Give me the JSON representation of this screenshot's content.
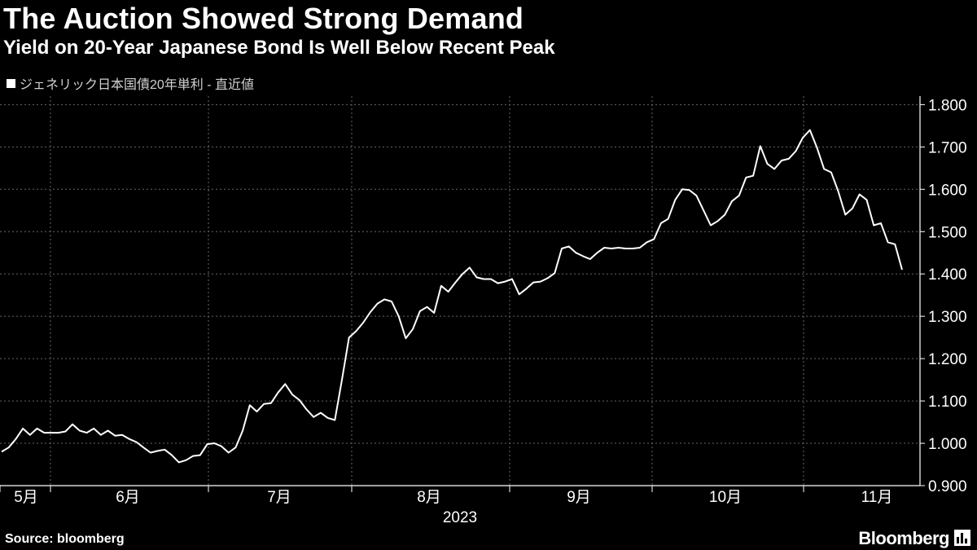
{
  "header": {
    "title": "The Auction Showed Strong Demand",
    "subtitle": "Yield on 20-Year Japanese Bond Is Well Below Recent Peak"
  },
  "legend": {
    "label": "ジェネリック日本国債20年単利 - 直近値"
  },
  "footer": {
    "source": "Source: bloomberg",
    "brand": "Bloomberg"
  },
  "colors": {
    "background": "#000000",
    "line": "#ffffff",
    "grid": "#666666"
  },
  "chart_data": {
    "type": "line",
    "title": "The Auction Showed Strong Demand",
    "subtitle": "Yield on 20-Year Japanese Bond Is Well Below Recent Peak",
    "series_name": "ジェネリック日本国債20年単利 - 直近値",
    "ylim": [
      0.9,
      1.82
    ],
    "y_ticks": [
      0.9,
      1.0,
      1.1,
      1.2,
      1.3,
      1.4,
      1.5,
      1.6,
      1.7,
      1.8
    ],
    "y_tick_labels": [
      "0.900",
      "1.000",
      "1.100",
      "1.200",
      "1.300",
      "1.400",
      "1.500",
      "1.600",
      "1.700",
      "1.800"
    ],
    "x_month_labels": [
      "5月",
      "6月",
      "7月",
      "8月",
      "9月",
      "10月",
      "11月"
    ],
    "x_year_label": "2023",
    "grid": true,
    "values": [
      0.98,
      0.99,
      1.01,
      1.035,
      1.02,
      1.035,
      1.025,
      1.025,
      1.025,
      1.028,
      1.045,
      1.03,
      1.025,
      1.035,
      1.02,
      1.03,
      1.018,
      1.02,
      1.01,
      1.003,
      0.99,
      0.978,
      0.982,
      0.985,
      0.972,
      0.955,
      0.96,
      0.97,
      0.972,
      0.998,
      1.0,
      0.993,
      0.978,
      0.99,
      1.03,
      1.09,
      1.075,
      1.093,
      1.095,
      1.12,
      1.14,
      1.115,
      1.102,
      1.08,
      1.062,
      1.072,
      1.06,
      1.055,
      1.15,
      1.25,
      1.265,
      1.285,
      1.31,
      1.33,
      1.34,
      1.335,
      1.3,
      1.248,
      1.27,
      1.312,
      1.322,
      1.308,
      1.372,
      1.358,
      1.38,
      1.4,
      1.415,
      1.392,
      1.388,
      1.388,
      1.378,
      1.382,
      1.388,
      1.352,
      1.365,
      1.38,
      1.382,
      1.39,
      1.402,
      1.46,
      1.465,
      1.45,
      1.442,
      1.435,
      1.45,
      1.462,
      1.46,
      1.462,
      1.46,
      1.46,
      1.462,
      1.475,
      1.482,
      1.52,
      1.53,
      1.575,
      1.6,
      1.598,
      1.585,
      1.55,
      1.515,
      1.525,
      1.54,
      1.572,
      1.585,
      1.628,
      1.632,
      1.702,
      1.66,
      1.648,
      1.668,
      1.672,
      1.69,
      1.722,
      1.74,
      1.698,
      1.648,
      1.64,
      1.595,
      1.54,
      1.555,
      1.588,
      1.575,
      1.515,
      1.52,
      1.475,
      1.47,
      1.41
    ]
  }
}
